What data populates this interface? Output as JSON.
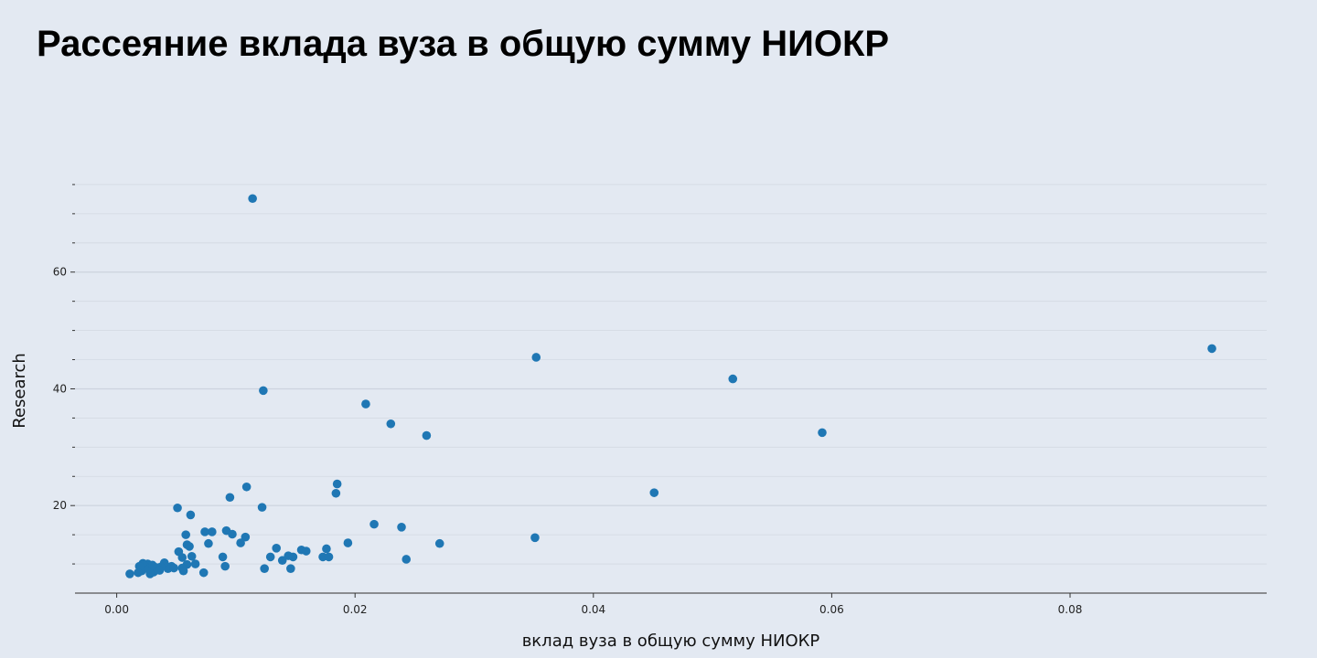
{
  "title": "Рассеяние вклада вуза в общую сумму НИОКР",
  "chart_data": {
    "type": "scatter",
    "xlabel": "вклад вуза в общую сумму НИОКР",
    "ylabel": "Research",
    "xlim": [
      -0.0035,
      0.0965
    ],
    "ylim": [
      5,
      80
    ],
    "xticks": [
      0.0,
      0.02,
      0.04,
      0.06,
      0.08
    ],
    "xtick_labels": [
      "0.00",
      "0.02",
      "0.04",
      "0.06",
      "0.08"
    ],
    "yticks": [
      20,
      40,
      60
    ],
    "ytick_labels": [
      "20",
      "40",
      "60"
    ],
    "y_minor_step": 5,
    "grid": true,
    "colors": {
      "point": "#1f77b4",
      "background": "#e3e9f2",
      "grid": "#cdd3de",
      "axis": "#555555"
    },
    "points": [
      [
        0.0114,
        72.6
      ],
      [
        0.0092,
        15.7
      ],
      [
        0.0089,
        11.2
      ],
      [
        0.0104,
        13.6
      ],
      [
        0.0109,
        23.2
      ],
      [
        0.0095,
        21.4
      ],
      [
        0.0123,
        39.7
      ],
      [
        0.0122,
        19.7
      ],
      [
        0.0124,
        9.2
      ],
      [
        0.0108,
        14.6
      ],
      [
        0.0097,
        15.1
      ],
      [
        0.0091,
        9.6
      ],
      [
        0.0129,
        11.2
      ],
      [
        0.0134,
        12.7
      ],
      [
        0.0139,
        10.6
      ],
      [
        0.0144,
        11.4
      ],
      [
        0.0146,
        9.2
      ],
      [
        0.0148,
        11.2
      ],
      [
        0.0155,
        12.4
      ],
      [
        0.0159,
        12.2
      ],
      [
        0.0173,
        11.2
      ],
      [
        0.0176,
        12.6
      ],
      [
        0.0178,
        11.2
      ],
      [
        0.0184,
        22.1
      ],
      [
        0.0185,
        23.7
      ],
      [
        0.0194,
        13.6
      ],
      [
        0.0209,
        37.4
      ],
      [
        0.0216,
        16.8
      ],
      [
        0.023,
        34.0
      ],
      [
        0.0239,
        16.3
      ],
      [
        0.0243,
        10.8
      ],
      [
        0.026,
        32.0
      ],
      [
        0.0271,
        13.5
      ],
      [
        0.0352,
        45.4
      ],
      [
        0.0351,
        14.5
      ],
      [
        0.0451,
        22.2
      ],
      [
        0.0517,
        41.7
      ],
      [
        0.0592,
        32.5
      ],
      [
        0.0919,
        46.9
      ],
      [
        0.0051,
        19.6
      ],
      [
        0.0062,
        18.4
      ],
      [
        0.0058,
        15.0
      ],
      [
        0.0074,
        15.5
      ],
      [
        0.008,
        15.5
      ],
      [
        0.0077,
        13.5
      ],
      [
        0.0059,
        13.3
      ],
      [
        0.0061,
        13.0
      ],
      [
        0.0052,
        12.1
      ],
      [
        0.0063,
        11.3
      ],
      [
        0.0055,
        11.1
      ],
      [
        0.0066,
        10.0
      ],
      [
        0.0059,
        9.9
      ],
      [
        0.0055,
        9.3
      ],
      [
        0.0056,
        8.8
      ],
      [
        0.0073,
        8.5
      ],
      [
        0.0046,
        9.6
      ],
      [
        0.0043,
        9.2
      ],
      [
        0.004,
        10.2
      ],
      [
        0.0037,
        9.5
      ],
      [
        0.0034,
        9.0
      ],
      [
        0.0031,
        8.6
      ],
      [
        0.0028,
        8.3
      ],
      [
        0.0026,
        10.0
      ],
      [
        0.0024,
        9.6
      ],
      [
        0.0022,
        10.1
      ],
      [
        0.0021,
        8.8
      ],
      [
        0.0019,
        9.6
      ],
      [
        0.0018,
        8.5
      ],
      [
        0.0011,
        8.3
      ],
      [
        0.0033,
        9.4
      ],
      [
        0.0048,
        9.3
      ],
      [
        0.0027,
        9.1
      ],
      [
        0.0036,
        8.9
      ],
      [
        0.003,
        9.8
      ]
    ]
  }
}
